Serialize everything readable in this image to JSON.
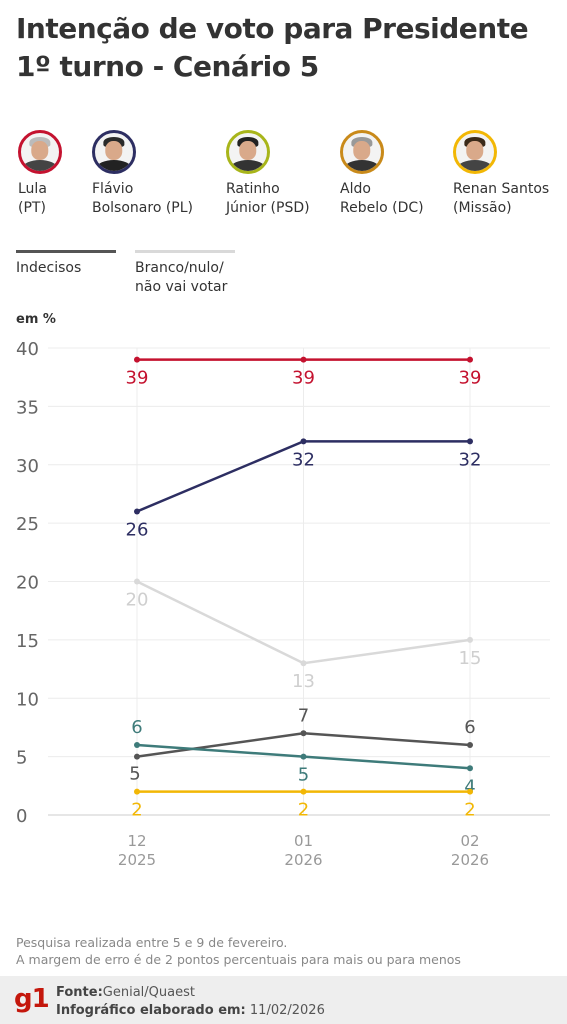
{
  "title": {
    "line1": "Intenção de voto para Presidente",
    "line2": "1º turno - Cenário 5"
  },
  "candidates": [
    {
      "name": "Lula\n(PT)",
      "color": "#c4122f",
      "icon": "lula-photo"
    },
    {
      "name": "Flávio\nBolsonaro (PL)",
      "color": "#2d2e62",
      "icon": "flavio-bolsonaro-photo"
    },
    {
      "name": "Ratinho\nJúnior (PSD)",
      "color": "#f2b705",
      "icon": "ratinho-junior-photo"
    },
    {
      "name": "Aldo\nRebelo (DC)",
      "color": "#3e7b7a",
      "icon": "aldo-rebelo-photo"
    },
    {
      "name": "Renan Santos\n(Missão)",
      "color": "#f2b705",
      "icon": "renan-santos-photo"
    }
  ],
  "legend_extra": [
    {
      "name": "Indecisos",
      "color": "#555555"
    },
    {
      "name": "Branco/nulo/\nnão vai votar",
      "color": "#d9d9d9"
    }
  ],
  "unit_label": "em %",
  "chart_data": {
    "type": "line",
    "categories": [
      {
        "month": "12",
        "year": "2025"
      },
      {
        "month": "01",
        "year": "2026"
      },
      {
        "month": "02",
        "year": "2026"
      }
    ],
    "ylim": [
      0,
      40
    ],
    "yticks": [
      0,
      5,
      10,
      15,
      20,
      25,
      30,
      35,
      40
    ],
    "grid": true,
    "series": [
      {
        "name": "Lula (PT)",
        "color": "#c4122f",
        "values": [
          39,
          39,
          39
        ],
        "label_pos": [
          "below",
          "below",
          "below"
        ]
      },
      {
        "name": "Flávio Bolsonaro (PL)",
        "color": "#2d2e62",
        "values": [
          26,
          32,
          32
        ],
        "label_pos": [
          "below",
          "below",
          "below"
        ]
      },
      {
        "name": "Branco/nulo/não vai votar",
        "color": "#d9d9d9",
        "values": [
          20,
          13,
          15
        ],
        "label_pos": [
          "below",
          "below",
          "below"
        ]
      },
      {
        "name": "Indecisos",
        "color": "#555555",
        "values": [
          5,
          7,
          6
        ],
        "label_pos": [
          "right",
          "above",
          "above"
        ]
      },
      {
        "name": "Aldo Rebelo (DC)",
        "color": "#3e7b7a",
        "values": [
          6,
          5,
          4
        ],
        "label_pos": [
          "above",
          "below",
          "below"
        ]
      },
      {
        "name": "Ratinho Júnior / Renan Santos",
        "color": "#f2b705",
        "values": [
          2,
          2,
          2
        ],
        "label_pos": [
          "below",
          "below",
          "below"
        ]
      }
    ]
  },
  "note": {
    "line1": "Pesquisa realizada entre 5 e 9 de fevereiro.",
    "line2": "A margem de erro é de 2 pontos percentuais para mais ou para menos"
  },
  "footer": {
    "logo": "g1",
    "source_label": "Fonte:",
    "source_value": "Genial/Quaest",
    "made_label": "Infográfico elaborado em:",
    "made_value": "11/02/2026"
  }
}
